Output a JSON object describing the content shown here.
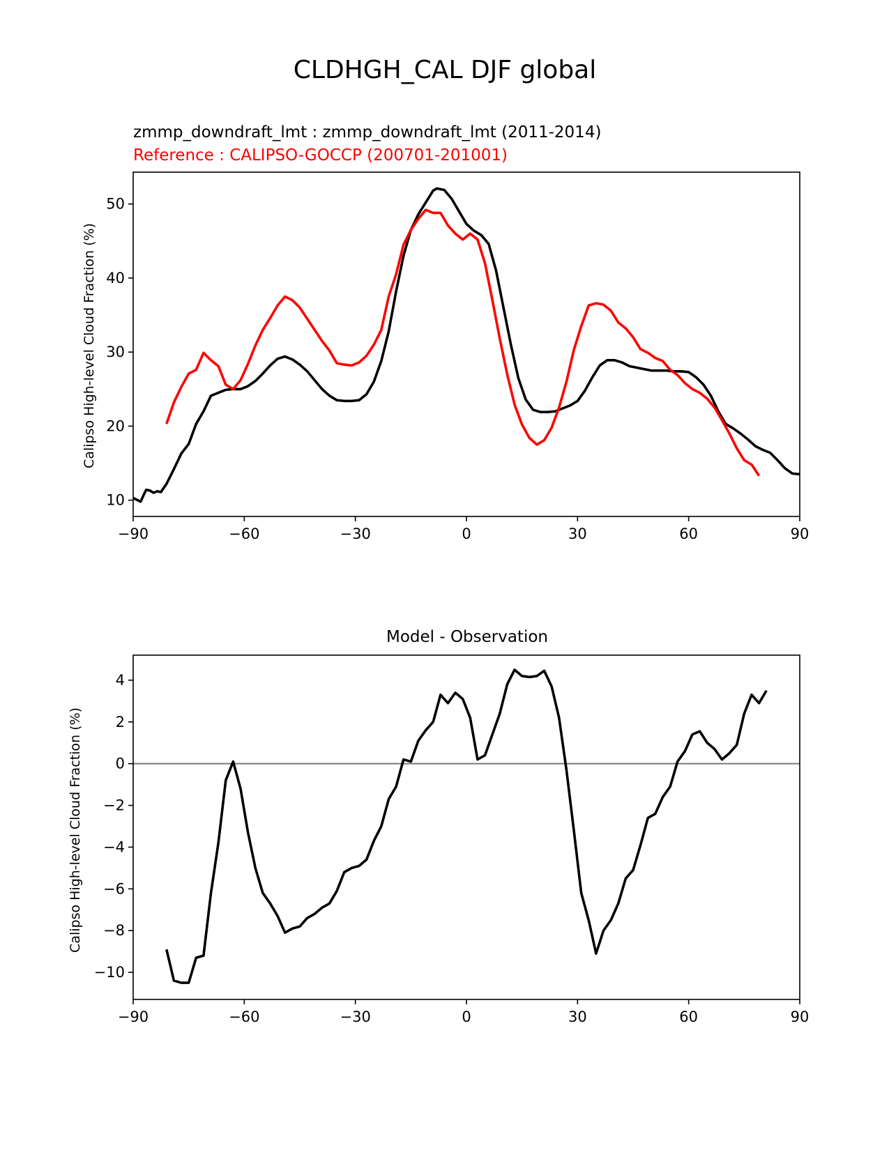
{
  "figure": {
    "suptitle": "CLDHGH_CAL DJF global"
  },
  "chart_data": [
    {
      "type": "line",
      "title_model": "zmmp_downdraft_lmt : zmmp_downdraft_lmt (2011-2014)",
      "title_reference": "Reference : CALIPSO-GOCCP (200701-201001)",
      "xlabel": "",
      "ylabel": "Calipso High-level Cloud Fraction (%)",
      "xlim": [
        -90,
        90
      ],
      "ylim": [
        7.8,
        54.3
      ],
      "xticks": [
        -90,
        -60,
        -30,
        0,
        30,
        60,
        90
      ],
      "xtick_labels": [
        "−90",
        "−60",
        "−30",
        "0",
        "30",
        "60",
        "90"
      ],
      "yticks": [
        10,
        20,
        30,
        40,
        50
      ],
      "ytick_labels": [
        "10",
        "20",
        "30",
        "40",
        "50"
      ],
      "series": [
        {
          "name": "model",
          "color": "#000000",
          "points": [
            [
              -90,
              10.3
            ],
            [
              -88,
              9.8
            ],
            [
              -86.5,
              11.4
            ],
            [
              -85.5,
              11.3
            ],
            [
              -84.5,
              11.0
            ],
            [
              -83.5,
              11.2
            ],
            [
              -82.5,
              11.1
            ],
            [
              -81,
              12.2
            ],
            [
              -79,
              14.2
            ],
            [
              -77,
              16.3
            ],
            [
              -75,
              17.6
            ],
            [
              -73,
              20.3
            ],
            [
              -71,
              22.0
            ],
            [
              -69,
              24.1
            ],
            [
              -67,
              24.5
            ],
            [
              -65,
              24.9
            ],
            [
              -63,
              25.0
            ],
            [
              -61,
              25.0
            ],
            [
              -59,
              25.4
            ],
            [
              -57,
              26.1
            ],
            [
              -55,
              27.1
            ],
            [
              -53,
              28.2
            ],
            [
              -51,
              29.1
            ],
            [
              -49,
              29.4
            ],
            [
              -47,
              29.0
            ],
            [
              -45,
              28.3
            ],
            [
              -43,
              27.4
            ],
            [
              -41,
              26.2
            ],
            [
              -39,
              25.0
            ],
            [
              -37,
              24.1
            ],
            [
              -35,
              23.5
            ],
            [
              -33,
              23.4
            ],
            [
              -31,
              23.4
            ],
            [
              -29,
              23.5
            ],
            [
              -27,
              24.3
            ],
            [
              -25,
              26.0
            ],
            [
              -23,
              28.8
            ],
            [
              -21,
              32.8
            ],
            [
              -19,
              38.2
            ],
            [
              -17,
              43.0
            ],
            [
              -15,
              46.5
            ],
            [
              -13,
              48.6
            ],
            [
              -11,
              50.2
            ],
            [
              -9,
              51.8
            ],
            [
              -8,
              52.1
            ],
            [
              -6,
              51.9
            ],
            [
              -4,
              50.7
            ],
            [
              -2,
              49.0
            ],
            [
              0,
              47.3
            ],
            [
              2,
              46.4
            ],
            [
              4,
              45.8
            ],
            [
              6,
              44.6
            ],
            [
              8,
              41.0
            ],
            [
              10,
              36.0
            ],
            [
              12,
              31.0
            ],
            [
              14,
              26.5
            ],
            [
              16,
              23.6
            ],
            [
              18,
              22.2
            ],
            [
              20,
              21.9
            ],
            [
              22,
              21.9
            ],
            [
              24,
              22.0
            ],
            [
              26,
              22.4
            ],
            [
              28,
              22.8
            ],
            [
              30,
              23.4
            ],
            [
              32,
              24.8
            ],
            [
              34,
              26.6
            ],
            [
              36,
              28.2
            ],
            [
              38,
              28.9
            ],
            [
              40,
              28.9
            ],
            [
              42,
              28.6
            ],
            [
              44,
              28.1
            ],
            [
              46,
              27.9
            ],
            [
              48,
              27.7
            ],
            [
              50,
              27.5
            ],
            [
              52,
              27.5
            ],
            [
              54,
              27.5
            ],
            [
              56,
              27.4
            ],
            [
              58,
              27.4
            ],
            [
              60,
              27.3
            ],
            [
              62,
              26.6
            ],
            [
              64,
              25.6
            ],
            [
              66,
              24.1
            ],
            [
              68,
              22.0
            ],
            [
              70,
              20.3
            ],
            [
              72,
              19.7
            ],
            [
              74,
              19.0
            ],
            [
              76,
              18.2
            ],
            [
              78,
              17.3
            ],
            [
              80,
              16.8
            ],
            [
              82,
              16.4
            ],
            [
              84,
              15.4
            ],
            [
              86,
              14.3
            ],
            [
              88,
              13.6
            ],
            [
              90,
              13.5
            ]
          ]
        },
        {
          "name": "reference",
          "color": "#ff0000",
          "points": [
            [
              -81,
              20.3
            ],
            [
              -79,
              23.2
            ],
            [
              -77,
              25.3
            ],
            [
              -75,
              27.1
            ],
            [
              -73,
              27.6
            ],
            [
              -71,
              29.9
            ],
            [
              -69,
              28.9
            ],
            [
              -67,
              28.1
            ],
            [
              -65,
              25.6
            ],
            [
              -63,
              25.0
            ],
            [
              -61,
              26.2
            ],
            [
              -59,
              28.4
            ],
            [
              -57,
              30.9
            ],
            [
              -55,
              33.0
            ],
            [
              -53,
              34.6
            ],
            [
              -51,
              36.3
            ],
            [
              -49,
              37.5
            ],
            [
              -47,
              37.0
            ],
            [
              -45,
              36.0
            ],
            [
              -43,
              34.5
            ],
            [
              -41,
              33.0
            ],
            [
              -39,
              31.5
            ],
            [
              -37,
              30.2
            ],
            [
              -35,
              28.5
            ],
            [
              -33,
              28.3
            ],
            [
              -31,
              28.2
            ],
            [
              -29,
              28.6
            ],
            [
              -27,
              29.5
            ],
            [
              -25,
              31.0
            ],
            [
              -23,
              33.0
            ],
            [
              -21,
              37.5
            ],
            [
              -19,
              40.5
            ],
            [
              -17,
              44.5
            ],
            [
              -15,
              46.5
            ],
            [
              -13,
              48.0
            ],
            [
              -11,
              49.2
            ],
            [
              -9,
              48.8
            ],
            [
              -7,
              48.8
            ],
            [
              -5,
              47.1
            ],
            [
              -3,
              46.0
            ],
            [
              -1,
              45.2
            ],
            [
              1,
              46.0
            ],
            [
              3,
              45.2
            ],
            [
              5,
              42.0
            ],
            [
              7,
              37.0
            ],
            [
              9,
              31.8
            ],
            [
              11,
              27.0
            ],
            [
              13,
              22.9
            ],
            [
              15,
              20.2
            ],
            [
              17,
              18.4
            ],
            [
              19,
              17.5
            ],
            [
              21,
              18.1
            ],
            [
              23,
              19.8
            ],
            [
              25,
              22.5
            ],
            [
              27,
              26.0
            ],
            [
              29,
              30.3
            ],
            [
              31,
              33.5
            ],
            [
              33,
              36.3
            ],
            [
              35,
              36.6
            ],
            [
              37,
              36.4
            ],
            [
              39,
              35.6
            ],
            [
              41,
              34.0
            ],
            [
              43,
              33.2
            ],
            [
              45,
              32.0
            ],
            [
              47,
              30.4
            ],
            [
              49,
              29.9
            ],
            [
              51,
              29.2
            ],
            [
              53,
              28.8
            ],
            [
              55,
              27.6
            ],
            [
              57,
              26.9
            ],
            [
              59,
              25.8
            ],
            [
              61,
              25.0
            ],
            [
              63,
              24.5
            ],
            [
              65,
              23.7
            ],
            [
              67,
              22.5
            ],
            [
              69,
              20.8
            ],
            [
              71,
              19.0
            ],
            [
              73,
              17.0
            ],
            [
              75,
              15.4
            ],
            [
              77,
              14.8
            ],
            [
              79,
              13.3
            ]
          ]
        }
      ]
    },
    {
      "type": "line",
      "title": "Model - Observation",
      "xlabel": "",
      "ylabel": "Calipso High-level Cloud Fraction (%)",
      "xlim": [
        -90,
        90
      ],
      "ylim": [
        -11.3,
        5.2
      ],
      "xticks": [
        -90,
        -60,
        -30,
        0,
        30,
        60,
        90
      ],
      "xtick_labels": [
        "−90",
        "−60",
        "−30",
        "0",
        "30",
        "60",
        "90"
      ],
      "yticks": [
        -10,
        -8,
        -6,
        -4,
        -2,
        0,
        2,
        4
      ],
      "ytick_labels": [
        "−10",
        "−8",
        "−6",
        "−4",
        "−2",
        "0",
        "2",
        "4"
      ],
      "zero_line": {
        "value": 0,
        "color": "#808080"
      },
      "series": [
        {
          "name": "difference",
          "color": "#000000",
          "points": [
            [
              -81,
              -8.9
            ],
            [
              -79,
              -10.4
            ],
            [
              -77,
              -10.5
            ],
            [
              -75,
              -10.5
            ],
            [
              -73,
              -9.3
            ],
            [
              -71,
              -9.2
            ],
            [
              -69,
              -6.2
            ],
            [
              -67,
              -3.8
            ],
            [
              -65,
              -0.8
            ],
            [
              -63,
              0.1
            ],
            [
              -61,
              -1.2
            ],
            [
              -59,
              -3.3
            ],
            [
              -57,
              -5.0
            ],
            [
              -55,
              -6.2
            ],
            [
              -53,
              -6.7
            ],
            [
              -51,
              -7.3
            ],
            [
              -49,
              -8.1
            ],
            [
              -47,
              -7.9
            ],
            [
              -45,
              -7.8
            ],
            [
              -43,
              -7.4
            ],
            [
              -41,
              -7.2
            ],
            [
              -39,
              -6.9
            ],
            [
              -37,
              -6.7
            ],
            [
              -35,
              -6.1
            ],
            [
              -33,
              -5.2
            ],
            [
              -31,
              -5.0
            ],
            [
              -29,
              -4.9
            ],
            [
              -27,
              -4.6
            ],
            [
              -25,
              -3.7
            ],
            [
              -23,
              -3.0
            ],
            [
              -21,
              -1.7
            ],
            [
              -19,
              -1.1
            ],
            [
              -17,
              0.2
            ],
            [
              -15,
              0.1
            ],
            [
              -13,
              1.1
            ],
            [
              -11,
              1.6
            ],
            [
              -9,
              2.0
            ],
            [
              -7,
              3.3
            ],
            [
              -5,
              2.9
            ],
            [
              -3,
              3.4
            ],
            [
              -1,
              3.1
            ],
            [
              1,
              2.2
            ],
            [
              3,
              0.2
            ],
            [
              5,
              0.4
            ],
            [
              7,
              1.4
            ],
            [
              9,
              2.4
            ],
            [
              11,
              3.8
            ],
            [
              13,
              4.5
            ],
            [
              15,
              4.2
            ],
            [
              17,
              4.15
            ],
            [
              19,
              4.2
            ],
            [
              21,
              4.45
            ],
            [
              23,
              3.7
            ],
            [
              25,
              2.2
            ],
            [
              27,
              -0.3
            ],
            [
              29,
              -3.2
            ],
            [
              31,
              -6.2
            ],
            [
              33,
              -7.5
            ],
            [
              35,
              -9.1
            ],
            [
              37,
              -8.0
            ],
            [
              39,
              -7.5
            ],
            [
              41,
              -6.7
            ],
            [
              43,
              -5.5
            ],
            [
              45,
              -5.1
            ],
            [
              47,
              -3.9
            ],
            [
              49,
              -2.6
            ],
            [
              51,
              -2.4
            ],
            [
              53,
              -1.6
            ],
            [
              55,
              -1.1
            ],
            [
              57,
              0.1
            ],
            [
              59,
              0.6
            ],
            [
              61,
              1.4
            ],
            [
              63,
              1.55
            ],
            [
              65,
              1.0
            ],
            [
              67,
              0.7
            ],
            [
              69,
              0.2
            ],
            [
              71,
              0.5
            ],
            [
              73,
              0.9
            ],
            [
              75,
              2.4
            ],
            [
              77,
              3.3
            ],
            [
              79,
              2.9
            ],
            [
              81,
              3.5
            ]
          ]
        }
      ]
    }
  ]
}
